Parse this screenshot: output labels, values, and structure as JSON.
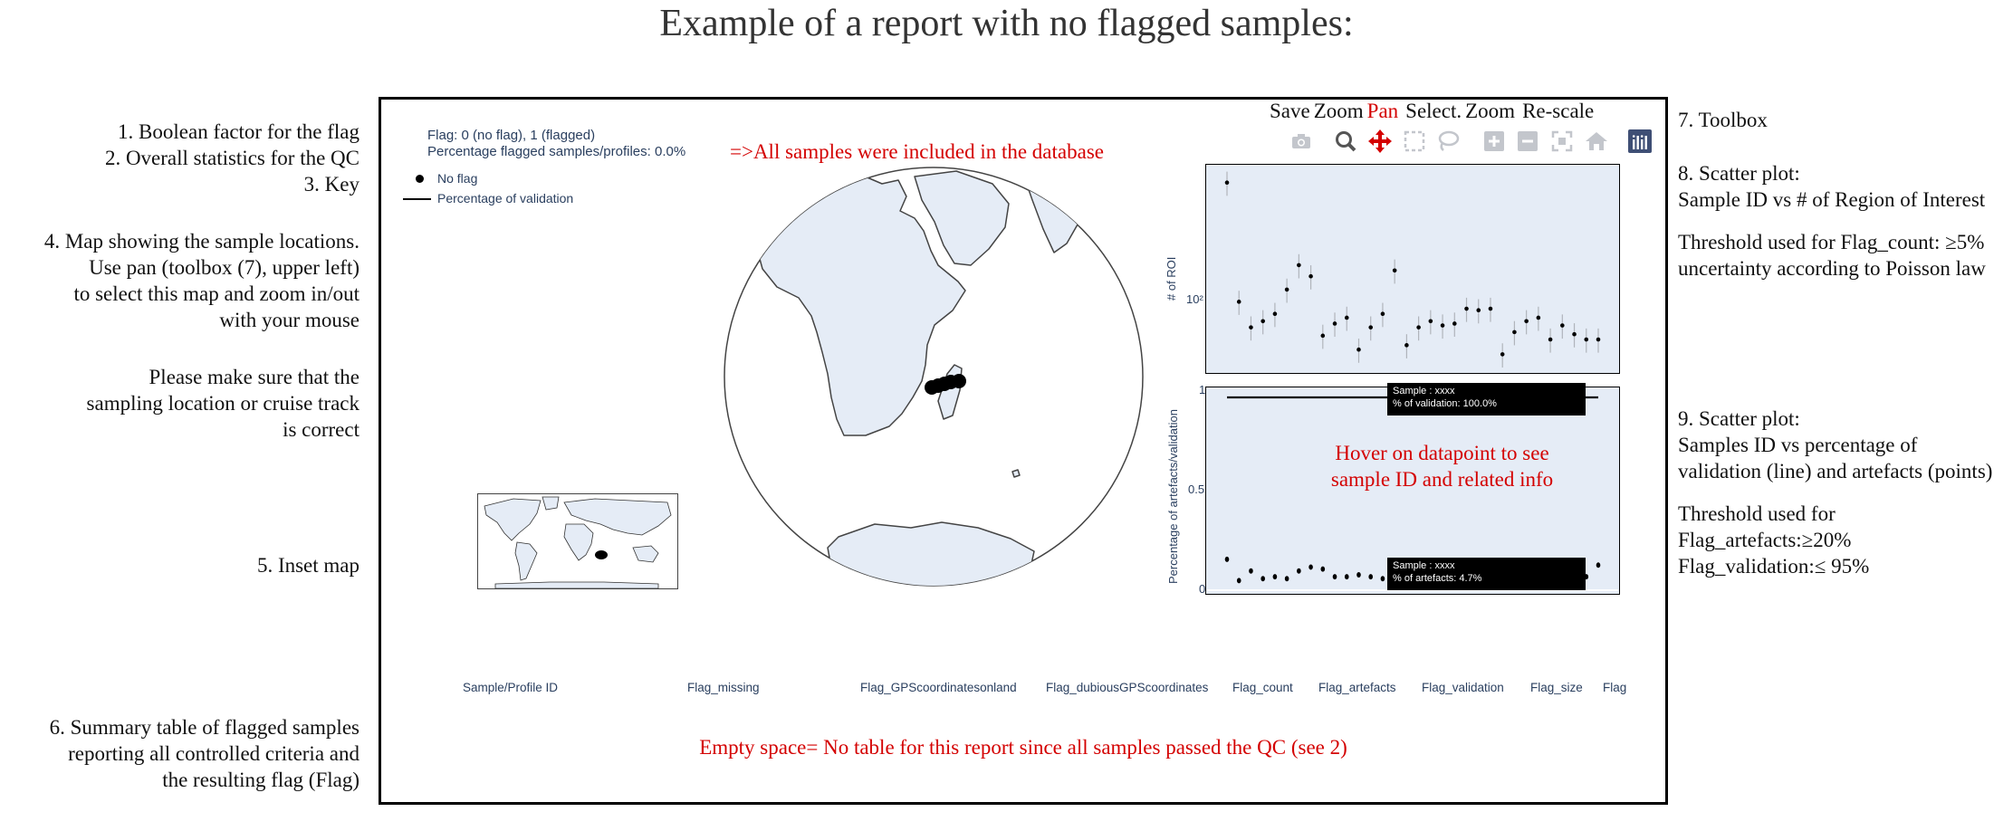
{
  "title": "Example of a report with no flagged samples:",
  "left_notes": {
    "note1": "1. Boolean factor for the flag",
    "note2": "2. Overall statistics for the QC",
    "note3": "3. Key",
    "note4_l1": "4. Map showing the sample locations.",
    "note4_l2": "Use pan (toolbox (7), upper left)",
    "note4_l3": "to select this map and zoom in/out",
    "note4_l4": "with your mouse",
    "note4b_l1": "Please make sure that the",
    "note4b_l2": "sampling location or cruise track",
    "note4b_l3": "is correct",
    "note5": "5. Inset map",
    "note6_l1": "6. Summary table of flagged samples",
    "note6_l2": "reporting all controlled criteria and",
    "note6_l3": "the resulting flag (Flag)"
  },
  "right_notes": {
    "note7": "7. Toolbox",
    "note8_l1": "8. Scatter plot:",
    "note8_l2": "Sample ID vs # of Region of Interest",
    "note8_l3": "Threshold used for Flag_count: ≥5%",
    "note8_l4": "uncertainty according to Poisson law",
    "note9_l1": "9. Scatter plot:",
    "note9_l2": "Samples ID vs percentage of",
    "note9_l3": "validation (line) and artefacts (points)",
    "note9_l4": "Threshold used for",
    "note9_l5": "Flag_artefacts:≥20%",
    "note9_l6": "Flag_validation:≤ 95%"
  },
  "report": {
    "flag_line": "Flag: 0 (no flag), 1 (flagged)",
    "pct_line": "Percentage flagged samples/profiles: 0.0%",
    "pct_annotation": "=>All samples were included in the database",
    "legend_no_flag": "No flag",
    "legend_validation": "Percentage of validation",
    "toolbox_labels": {
      "save": "Save",
      "zoom": "Zoom",
      "pan": "Pan",
      "select": "Select.",
      "zoom2": "Zoom",
      "rescale": "Re-scale"
    },
    "toolbox_icons": [
      "camera-icon",
      "zoom-icon",
      "pan-icon",
      "box-select-icon",
      "lasso-select-icon",
      "zoom-in-icon",
      "zoom-out-icon",
      "autoscale-icon",
      "reset-axes-icon",
      "plotly-logo-icon"
    ],
    "hover_annotation_l1": "Hover on datapoint to see",
    "hover_annotation_l2": "sample ID and related info",
    "tooltip_validation_l1": "Sample : xxxx",
    "tooltip_validation_l2": "% of validation: 100.0%",
    "tooltip_artefacts_l1": "Sample : xxxx",
    "tooltip_artefacts_l2": "% of artefacts: 4.7%",
    "table_columns": [
      "Sample/Profile ID",
      "Flag_missing",
      "Flag_GPScoordinatesonland",
      "Flag_dubiousGPScoordinates",
      "Flag_count",
      "Flag_artefacts",
      "Flag_validation",
      "Flag_size",
      "Flag"
    ],
    "empty_note": "Empty space= No table for this report since all samples passed the QC (see 2)"
  },
  "chart_data": [
    {
      "type": "scatter",
      "ylabel": "# of ROI",
      "yscale": "log",
      "ytick_labels": [
        "10²"
      ],
      "x": [
        1,
        2,
        3,
        4,
        5,
        6,
        7,
        8,
        9,
        10,
        11,
        12,
        13,
        14,
        15,
        16,
        17,
        18,
        19,
        20,
        21,
        22,
        23,
        24,
        25,
        26,
        27,
        28,
        29,
        30,
        31,
        32
      ],
      "y": [
        900,
        150,
        102,
        112,
        125,
        180,
        260,
        220,
        90,
        108,
        118,
        73,
        102,
        125,
        240,
        78,
        102,
        112,
        105,
        108,
        135,
        132,
        135,
        68,
        95,
        112,
        118,
        85,
        105,
        92,
        85,
        85
      ],
      "error_bars": true
    },
    {
      "type": "line+scatter",
      "ylabel": "Percentage of artefacts/validation",
      "ylim": [
        0,
        1
      ],
      "ytick_labels": [
        "0",
        "0.5",
        "1"
      ],
      "validation_line": 1.0,
      "artefacts_x": [
        1,
        2,
        3,
        4,
        5,
        6,
        7,
        8,
        9,
        10,
        11,
        12,
        13,
        14,
        15,
        16,
        17,
        18,
        19,
        20,
        21,
        22,
        23,
        24,
        25,
        26,
        27,
        28,
        29,
        30,
        31,
        32
      ],
      "artefacts_y": [
        0.16,
        0.05,
        0.1,
        0.06,
        0.07,
        0.06,
        0.1,
        0.12,
        0.11,
        0.07,
        0.07,
        0.08,
        0.07,
        0.06,
        0.05,
        0.05,
        0.06,
        0.08,
        0.06,
        0.07,
        0.06,
        0.05,
        0.05,
        0.09,
        0.07,
        0.08,
        0.09,
        0.08,
        0.13,
        0.1,
        0.07,
        0.13
      ]
    }
  ]
}
